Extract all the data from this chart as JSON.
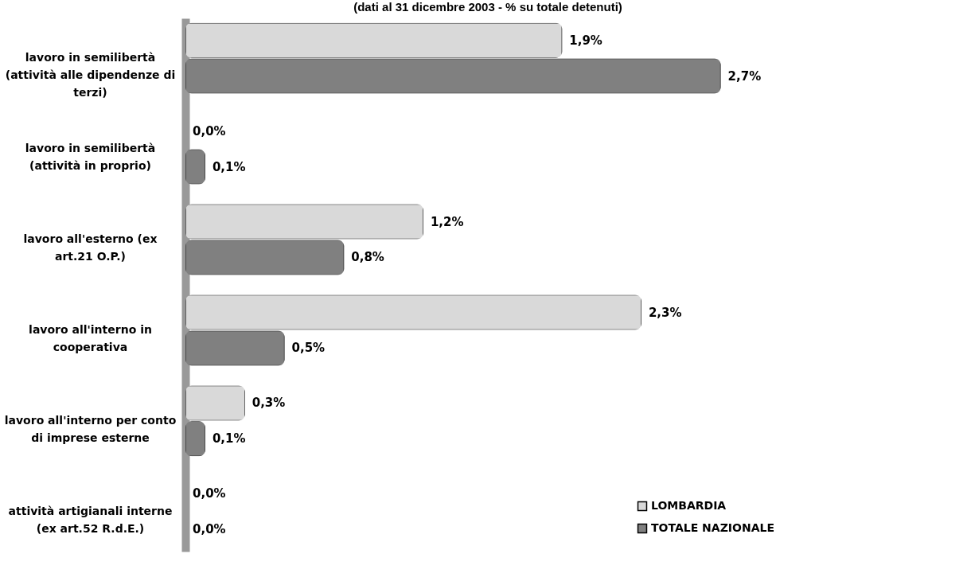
{
  "chart_data": {
    "type": "bar",
    "orientation": "horizontal",
    "title": "(dati al 31 dicembre 2003 - % su totale detenuti)",
    "categories": [
      "lavoro in semilibertà (attività alle dipendenze di terzi)",
      "lavoro in semilibertà (attività in proprio)",
      "lavoro all'esterno (ex art.21 O.P.)",
      "lavoro all'interno in cooperativa",
      "lavoro all'interno per conto di imprese esterne",
      "attività artigianali interne (ex art.52 R.d.E.)"
    ],
    "series": [
      {
        "name": "LOMBARDIA",
        "color": "#d9d9d9",
        "values": [
          1.9,
          0,
          1.2,
          2.3,
          0.3,
          0
        ],
        "value_labels": [
          "1,9%",
          "0,0%",
          "1,2%",
          "2,3%",
          "0,3%",
          "0,0%"
        ]
      },
      {
        "name": "TOTALE NAZIONALE",
        "color": "#808080",
        "values": [
          2.7,
          0.1,
          0.8,
          0.5,
          0.1,
          0
        ],
        "value_labels": [
          "2,7%",
          "0,1%",
          "0,8%",
          "0,5%",
          "0,1%",
          "0,0%"
        ]
      }
    ],
    "legend": "bottom right"
  }
}
